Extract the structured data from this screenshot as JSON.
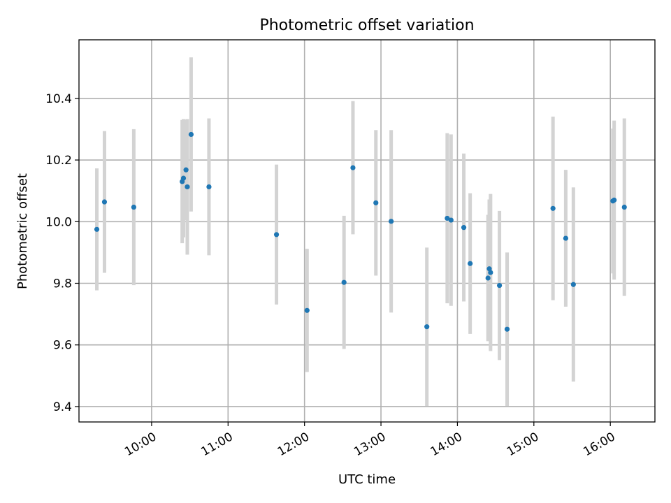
{
  "chart_data": {
    "type": "scatter",
    "title": "Photometric offset variation",
    "xlabel": "UTC time",
    "ylabel": "Photometric offset",
    "grid": true,
    "x_ticks": [
      "10:00",
      "11:00",
      "12:00",
      "13:00",
      "14:00",
      "15:00",
      "16:00"
    ],
    "y_ticks": [
      "9.4",
      "9.6",
      "9.8",
      "10.0",
      "10.2",
      "10.4"
    ],
    "xlim": [
      "09:03",
      "16:35"
    ],
    "ylim": [
      9.35,
      10.59
    ],
    "colors": {
      "points": "#1f77b4",
      "errorbars": "#d3d3d3",
      "grid": "#b0b0b0"
    },
    "points": [
      {
        "time": "09:17",
        "y": 9.975,
        "err": 0.198
      },
      {
        "time": "09:23",
        "y": 10.064,
        "err": 0.23
      },
      {
        "time": "09:46",
        "y": 10.047,
        "err": 0.253
      },
      {
        "time": "10:24",
        "y": 10.13,
        "err": 0.2
      },
      {
        "time": "10:25",
        "y": 10.141,
        "err": 0.192
      },
      {
        "time": "10:27",
        "y": 10.168,
        "err": 0.163
      },
      {
        "time": "10:28",
        "y": 10.113,
        "err": 0.22
      },
      {
        "time": "10:31",
        "y": 10.283,
        "err": 0.25
      },
      {
        "time": "10:45",
        "y": 10.113,
        "err": 0.222
      },
      {
        "time": "11:38",
        "y": 9.958,
        "err": 0.227
      },
      {
        "time": "12:02",
        "y": 9.712,
        "err": 0.2
      },
      {
        "time": "12:31",
        "y": 9.803,
        "err": 0.216
      },
      {
        "time": "12:38",
        "y": 10.175,
        "err": 0.216
      },
      {
        "time": "12:56",
        "y": 10.061,
        "err": 0.236
      },
      {
        "time": "13:08",
        "y": 10.001,
        "err": 0.296
      },
      {
        "time": "13:36",
        "y": 9.659,
        "err": 0.257
      },
      {
        "time": "13:52",
        "y": 10.011,
        "err": 0.276
      },
      {
        "time": "13:55",
        "y": 10.005,
        "err": 0.278
      },
      {
        "time": "14:05",
        "y": 9.981,
        "err": 0.24
      },
      {
        "time": "14:10",
        "y": 9.864,
        "err": 0.228
      },
      {
        "time": "14:24",
        "y": 9.817,
        "err": 0.205
      },
      {
        "time": "14:25",
        "y": 9.847,
        "err": 0.225
      },
      {
        "time": "14:26",
        "y": 9.835,
        "err": 0.255
      },
      {
        "time": "14:33",
        "y": 9.793,
        "err": 0.242
      },
      {
        "time": "14:39",
        "y": 9.651,
        "err": 0.249
      },
      {
        "time": "15:15",
        "y": 10.043,
        "err": 0.298
      },
      {
        "time": "15:25",
        "y": 9.946,
        "err": 0.222
      },
      {
        "time": "15:31",
        "y": 9.796,
        "err": 0.315
      },
      {
        "time": "16:02",
        "y": 10.067,
        "err": 0.235
      },
      {
        "time": "16:03",
        "y": 10.07,
        "err": 0.258
      },
      {
        "time": "16:11",
        "y": 10.047,
        "err": 0.288
      }
    ]
  }
}
